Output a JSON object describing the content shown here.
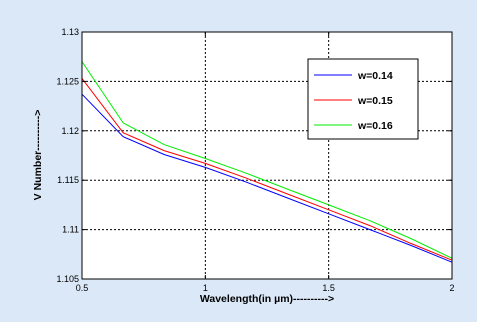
{
  "chart_data": {
    "type": "line",
    "xlabel": "Wavelength(in µm)---------->",
    "ylabel": "V Number---------->",
    "xlim": [
      0.5,
      2
    ],
    "ylim": [
      1.105,
      1.13
    ],
    "xticks": [
      0.5,
      1,
      1.5,
      2
    ],
    "xtick_labels": [
      "0.5",
      "1",
      "1.5",
      "2"
    ],
    "yticks": [
      1.105,
      1.11,
      1.115,
      1.12,
      1.125,
      1.13
    ],
    "ytick_labels": [
      "1.105",
      "1.11",
      "1.115",
      "1.12",
      "1.125",
      "1.13"
    ],
    "grid": true,
    "legend_position": "top-right",
    "x": [
      0.5,
      0.667,
      0.833,
      1.0,
      1.167,
      1.333,
      1.5,
      1.667,
      1.833,
      2.0
    ],
    "series": [
      {
        "name": "w=0.14",
        "color": "#0000ff",
        "values": [
          1.1237,
          1.1194,
          1.1176,
          1.1163,
          1.1148,
          1.1132,
          1.1116,
          1.11,
          1.1084,
          1.1067
        ]
      },
      {
        "name": "w=0.15",
        "color": "#ff0000",
        "values": [
          1.1253,
          1.1198,
          1.118,
          1.1167,
          1.1152,
          1.1136,
          1.112,
          1.1104,
          1.1086,
          1.1069
        ]
      },
      {
        "name": "w=0.16",
        "color": "#00ee00",
        "values": [
          1.127,
          1.1208,
          1.1186,
          1.1172,
          1.1157,
          1.1141,
          1.1125,
          1.1109,
          1.1091,
          1.1071
        ]
      }
    ]
  },
  "colors": {
    "figure_background": "#dbe8f7",
    "plot_background": "#ffffff",
    "grid": "#000000",
    "axes": "#000000"
  }
}
